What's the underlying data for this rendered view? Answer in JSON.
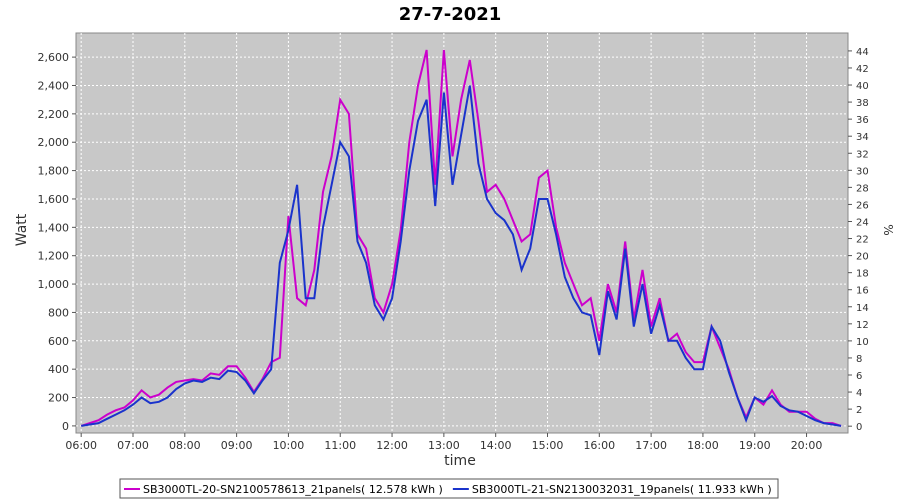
{
  "chart_data": {
    "type": "line",
    "title": "27-7-2021",
    "xlabel": "time",
    "ylabel": "Watt",
    "y2label": "%",
    "x": [
      "06:00",
      "06:10",
      "06:20",
      "06:30",
      "06:40",
      "06:50",
      "07:00",
      "07:10",
      "07:20",
      "07:30",
      "07:40",
      "07:50",
      "08:00",
      "08:10",
      "08:20",
      "08:30",
      "08:40",
      "08:50",
      "09:00",
      "09:10",
      "09:20",
      "09:30",
      "09:40",
      "09:50",
      "10:00",
      "10:10",
      "10:20",
      "10:30",
      "10:40",
      "10:50",
      "11:00",
      "11:10",
      "11:20",
      "11:30",
      "11:40",
      "11:50",
      "12:00",
      "12:10",
      "12:20",
      "12:30",
      "12:40",
      "12:50",
      "13:00",
      "13:10",
      "13:20",
      "13:30",
      "13:40",
      "13:50",
      "14:00",
      "14:10",
      "14:20",
      "14:30",
      "14:40",
      "14:50",
      "15:00",
      "15:10",
      "15:20",
      "15:30",
      "15:40",
      "15:50",
      "16:00",
      "16:10",
      "16:20",
      "16:30",
      "16:40",
      "16:50",
      "17:00",
      "17:10",
      "17:20",
      "17:30",
      "17:40",
      "17:50",
      "18:00",
      "18:10",
      "18:20",
      "18:30",
      "18:40",
      "18:50",
      "19:00",
      "19:10",
      "19:20",
      "19:30",
      "19:40",
      "19:50",
      "20:00",
      "20:10",
      "20:20",
      "20:30",
      "20:40"
    ],
    "series": [
      {
        "name": "SB3000TL-20-SN2100578613_21panels( 12.578 kWh )",
        "color": "#cc00cc",
        "values": [
          0,
          20,
          40,
          80,
          110,
          130,
          180,
          250,
          200,
          220,
          270,
          310,
          320,
          330,
          320,
          370,
          360,
          420,
          420,
          340,
          240,
          330,
          450,
          480,
          1480,
          900,
          850,
          1100,
          1650,
          1900,
          2300,
          2200,
          1350,
          1250,
          900,
          800,
          1000,
          1380,
          2000,
          2400,
          2650,
          1700,
          2650,
          1900,
          2300,
          2580,
          2150,
          1650,
          1700,
          1600,
          1450,
          1300,
          1350,
          1750,
          1800,
          1400,
          1150,
          1000,
          850,
          900,
          600,
          1000,
          800,
          1300,
          750,
          1100,
          700,
          900,
          600,
          650,
          520,
          450,
          450,
          700,
          550,
          400,
          200,
          60,
          200,
          150,
          250,
          150,
          100,
          100,
          100,
          50,
          20,
          20,
          0
        ]
      },
      {
        "name": "SB3000TL-21-SN2130032031_19panels( 11.933 kWh )",
        "color": "#1a33cc",
        "values": [
          0,
          10,
          20,
          50,
          80,
          110,
          150,
          200,
          160,
          170,
          200,
          260,
          300,
          320,
          310,
          340,
          330,
          390,
          380,
          320,
          230,
          320,
          400,
          1150,
          1380,
          1700,
          900,
          900,
          1400,
          1700,
          2000,
          1900,
          1300,
          1150,
          850,
          750,
          900,
          1300,
          1800,
          2150,
          2300,
          1550,
          2350,
          1700,
          2050,
          2400,
          1850,
          1600,
          1500,
          1450,
          1350,
          1100,
          1250,
          1600,
          1600,
          1350,
          1050,
          900,
          800,
          780,
          500,
          950,
          750,
          1250,
          700,
          1000,
          650,
          850,
          600,
          600,
          480,
          400,
          400,
          700,
          600,
          380,
          200,
          40,
          200,
          170,
          210,
          140,
          110,
          100,
          70,
          40,
          20,
          10,
          0
        ]
      }
    ],
    "xlim": [
      "05:54",
      "20:48"
    ],
    "xticks": [
      "06:00",
      "07:00",
      "08:00",
      "09:00",
      "10:00",
      "11:00",
      "12:00",
      "13:00",
      "14:00",
      "15:00",
      "16:00",
      "17:00",
      "18:00",
      "19:00",
      "20:00"
    ],
    "ylim": [
      -50,
      2770
    ],
    "yticks": [
      0,
      200,
      400,
      600,
      800,
      {
        "value": 1000,
        "label": "1,000"
      },
      {
        "value": 1200,
        "label": "1,200"
      },
      {
        "value": 1400,
        "label": "1,400"
      },
      {
        "value": 1600,
        "label": "1,600"
      },
      {
        "value": 1800,
        "label": "1,800"
      },
      {
        "value": 2000,
        "label": "2,000"
      },
      {
        "value": 2200,
        "label": "2,200"
      },
      {
        "value": 2400,
        "label": "2,400"
      },
      {
        "value": 2600,
        "label": "2,600"
      }
    ],
    "y2lim": [
      -0.8,
      46.1
    ],
    "y2ticks": [
      0,
      2,
      4,
      6,
      8,
      10,
      12,
      14,
      16,
      18,
      20,
      22,
      24,
      26,
      28,
      30,
      32,
      34,
      36,
      38,
      40,
      42,
      44
    ],
    "grid": true
  }
}
